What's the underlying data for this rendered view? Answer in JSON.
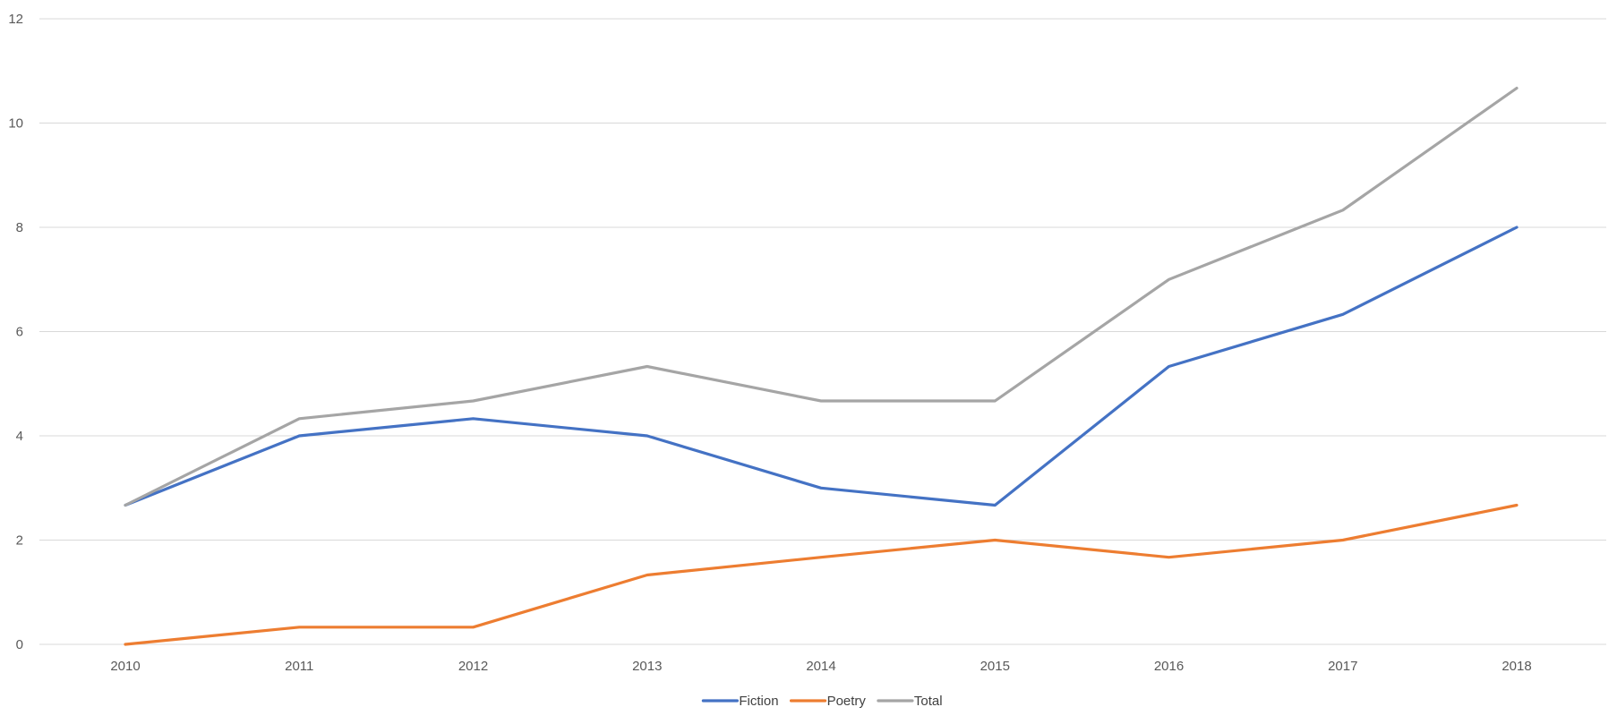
{
  "chart_data": {
    "type": "line",
    "title": "",
    "xlabel": "",
    "ylabel": "",
    "categories": [
      "2010",
      "2011",
      "2012",
      "2013",
      "2014",
      "2015",
      "2016",
      "2017",
      "2018"
    ],
    "ylim": [
      0,
      12
    ],
    "yticks": [
      0,
      2,
      4,
      6,
      8,
      10,
      12
    ],
    "grid": "horizontal",
    "legend_position": "bottom",
    "series": [
      {
        "name": "Fiction",
        "color": "#4472C4",
        "values": [
          2.67,
          4.0,
          4.33,
          4.0,
          3.0,
          2.67,
          5.33,
          6.33,
          8.0
        ]
      },
      {
        "name": "Poetry",
        "color": "#ED7D31",
        "values": [
          0.0,
          0.33,
          0.33,
          1.33,
          1.67,
          2.0,
          1.67,
          2.0,
          2.67
        ]
      },
      {
        "name": "Total",
        "color": "#A5A5A5",
        "values": [
          2.67,
          4.33,
          4.67,
          5.33,
          4.67,
          4.67,
          7.0,
          8.33,
          10.67
        ]
      }
    ]
  }
}
